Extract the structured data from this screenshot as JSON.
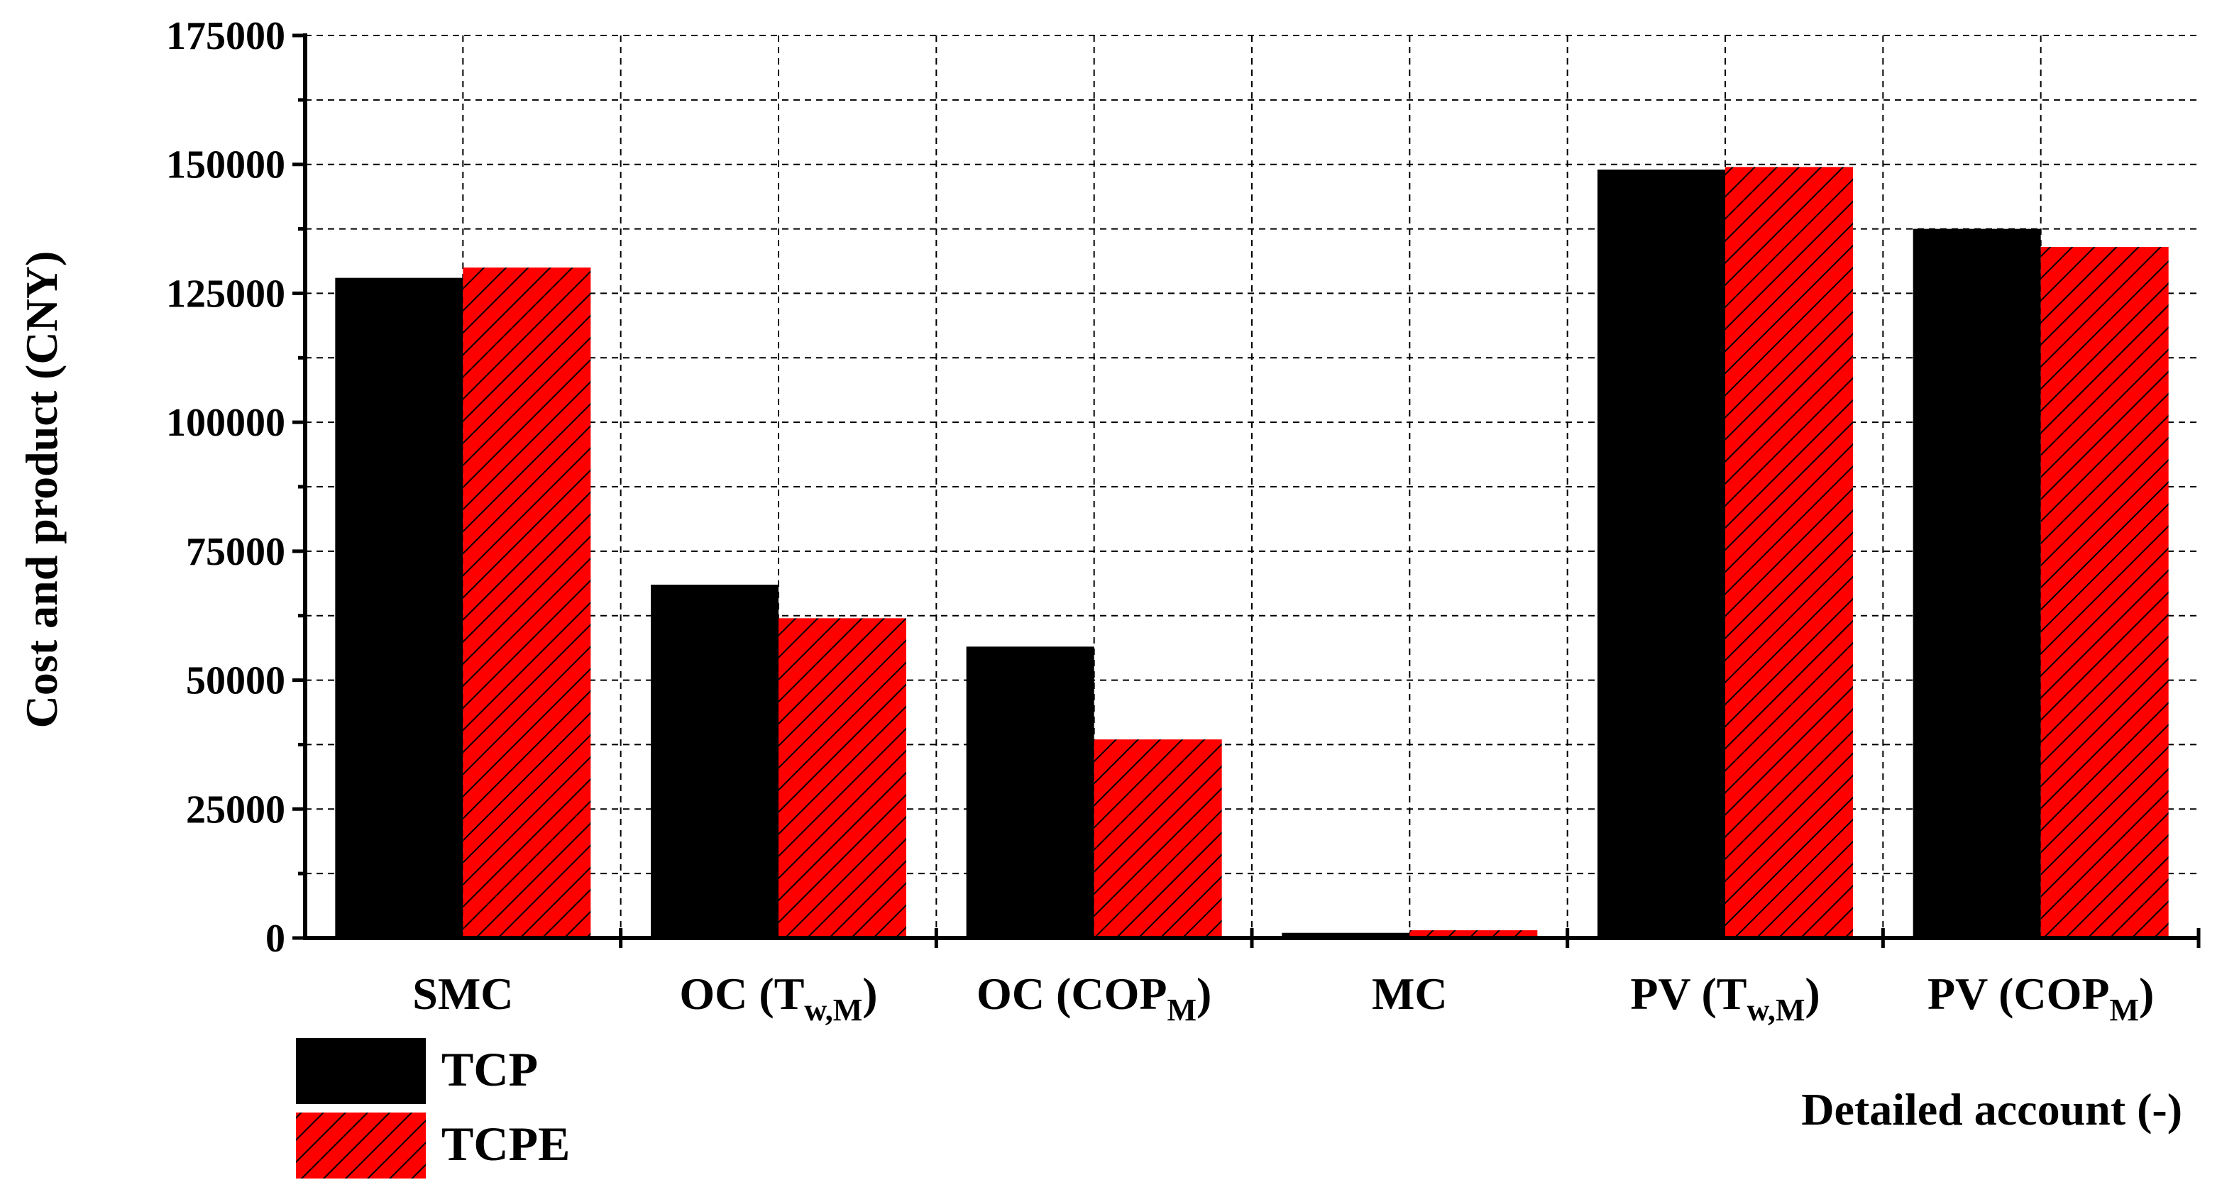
{
  "chart_data": {
    "type": "bar",
    "categories": [
      {
        "main": "SMC",
        "sub": "",
        "tail": ""
      },
      {
        "main": "OC (T",
        "sub": "w,M",
        "tail": ")"
      },
      {
        "main": "OC (COP",
        "sub": "M",
        "tail": ")"
      },
      {
        "main": "MC",
        "sub": "",
        "tail": ""
      },
      {
        "main": "PV (T",
        "sub": "w,M",
        "tail": ")"
      },
      {
        "main": "PV (COP",
        "sub": "M",
        "tail": ")"
      }
    ],
    "series": [
      {
        "name": "TCP",
        "values": [
          128000,
          68500,
          56500,
          1000,
          149000,
          137500
        ],
        "color": "#000000",
        "pattern": "solid"
      },
      {
        "name": "TCPE",
        "values": [
          130000,
          62000,
          38500,
          1500,
          149500,
          134000
        ],
        "color": "#ff0000",
        "pattern": "hatched"
      }
    ],
    "xlabel": "Detailed account (-)",
    "ylabel": "Cost and product (CNY)",
    "ylim": [
      0,
      175000
    ],
    "yticks": [
      0,
      25000,
      50000,
      75000,
      100000,
      125000,
      150000,
      175000
    ],
    "grid": true,
    "legend_position": "bottom-left"
  }
}
